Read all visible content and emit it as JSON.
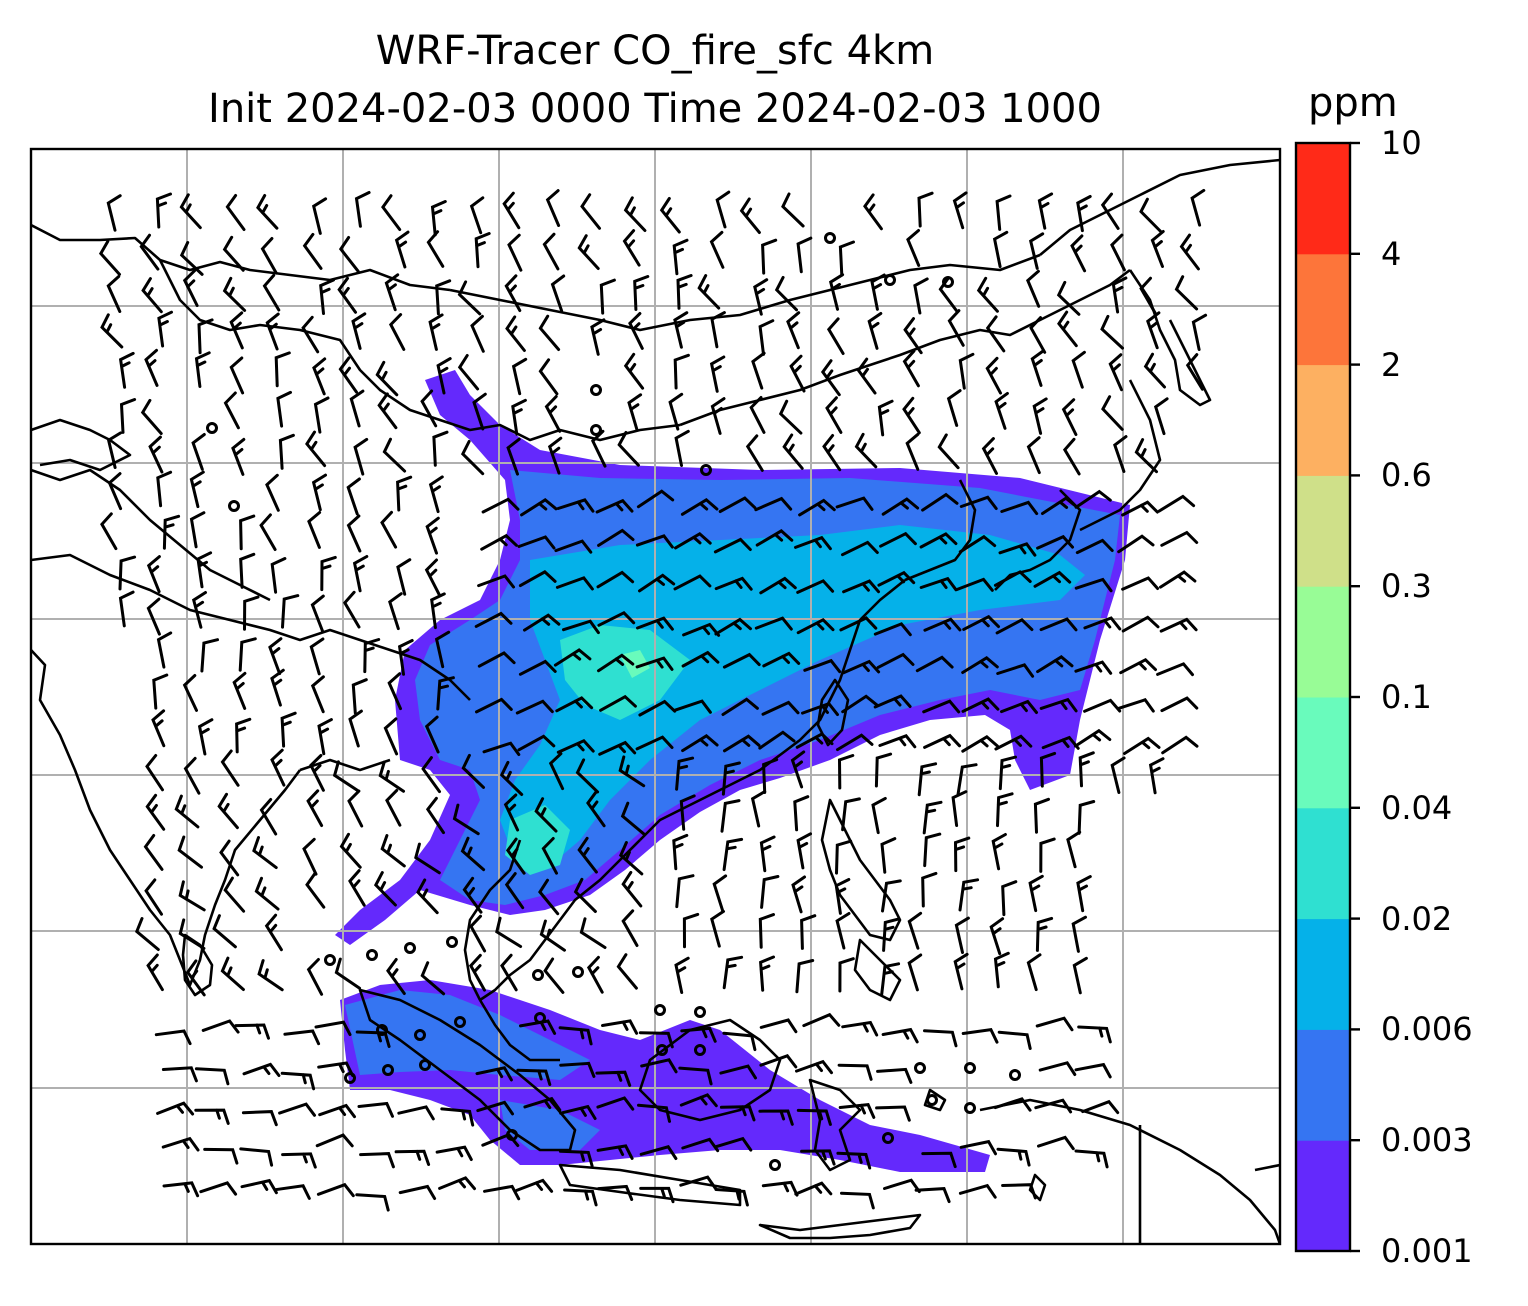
{
  "title_line1": "WRF-Tracer CO_fire_sfc 4km",
  "title_line2": "Init 2024-02-03 0000 Time 2024-02-03 1000",
  "colorbar": {
    "unit": "ppm",
    "levels": [
      "0.001",
      "0.003",
      "0.006",
      "0.02",
      "0.04",
      "0.1",
      "0.3",
      "0.6",
      "2",
      "4",
      "10"
    ],
    "colors": [
      "#6429fc",
      "#3575f2",
      "#05b1e9",
      "#2fe0d1",
      "#69fbbc",
      "#98fc96",
      "#cfe089",
      "#fdb061",
      "#fd753a",
      "#ff2a18"
    ]
  },
  "map": {
    "background": "#ffffff",
    "coastline_color": "#000000",
    "gridline_color": "#b0b0b0",
    "wind_barb_color": "#000000"
  }
}
